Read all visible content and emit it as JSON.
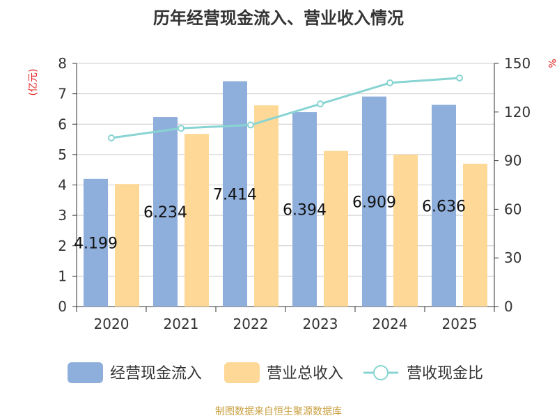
{
  "chart_data": {
    "type": "bar",
    "title": "历年经营现金流入、营业收入情况",
    "categories": [
      "2020",
      "2021",
      "2022",
      "2023",
      "2024",
      "2025"
    ],
    "series": [
      {
        "name": "经营现金流入",
        "kind": "bar",
        "axis": "left",
        "color": "#8eaedb",
        "values": [
          4.199,
          6.234,
          7.414,
          6.394,
          6.909,
          6.636
        ]
      },
      {
        "name": "营业总收入",
        "kind": "bar",
        "axis": "left",
        "color": "#fdd897",
        "values": [
          4.03,
          5.68,
          6.62,
          5.12,
          5.0,
          4.7
        ]
      },
      {
        "name": "营收现金比",
        "kind": "line",
        "axis": "right",
        "color": "#88d4d2",
        "values": [
          104,
          110,
          112,
          125,
          138,
          141
        ]
      }
    ],
    "data_labels": [
      "4.199",
      "6.234",
      "7.414",
      "6.394",
      "6.909",
      "6.636"
    ],
    "ylabel_left": "(亿元)",
    "ylabel_right": "%",
    "ylim_left": [
      0,
      8
    ],
    "ylim_right": [
      0,
      150
    ],
    "yticks_left": [
      "0",
      "1",
      "2",
      "3",
      "4",
      "5",
      "6",
      "7",
      "8"
    ],
    "yticks_right": [
      "0",
      "30",
      "60",
      "90",
      "120",
      "150"
    ],
    "grid": true,
    "legend_position": "bottom",
    "unit_color": "#e02020"
  },
  "source_note": "制图数据来自恒生聚源数据库",
  "source_color": "#c8a040"
}
